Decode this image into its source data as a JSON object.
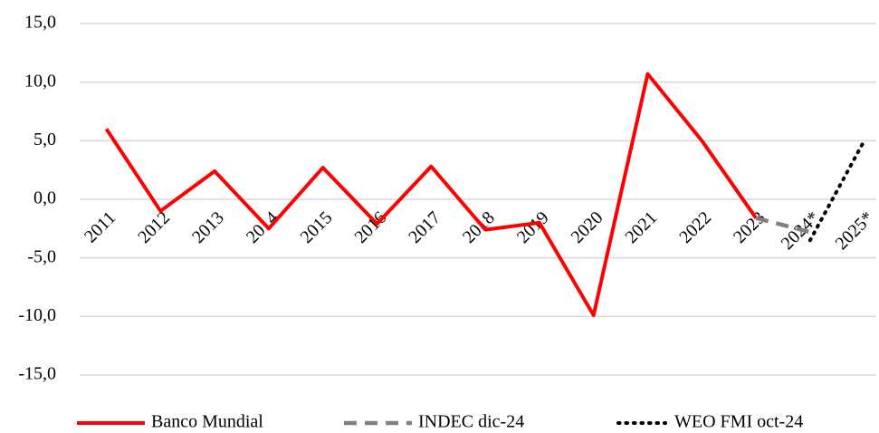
{
  "chart_data": {
    "type": "line",
    "categories": [
      "2011",
      "2012",
      "2013",
      "2014",
      "2015",
      "2016",
      "2017",
      "2018",
      "2019",
      "2020",
      "2021",
      "2022",
      "2023",
      "2024*",
      "2025*"
    ],
    "series": [
      {
        "name": "Banco Mundial",
        "color": "#ff0000",
        "style": "solid",
        "values": [
          6.0,
          -1.0,
          2.4,
          -2.5,
          2.7,
          -2.1,
          2.8,
          -2.6,
          -2.0,
          -9.9,
          10.7,
          5.0,
          -1.6,
          null,
          null
        ]
      },
      {
        "name": "INDEC dic-24",
        "color": "#808080",
        "style": "dashed",
        "values": [
          null,
          null,
          null,
          null,
          null,
          null,
          null,
          null,
          null,
          null,
          null,
          null,
          -1.6,
          -2.8,
          null
        ]
      },
      {
        "name": "WEO FMI oct-24",
        "color": "#000000",
        "style": "dotted",
        "values": [
          null,
          null,
          null,
          null,
          null,
          null,
          null,
          null,
          null,
          null,
          null,
          null,
          null,
          -3.5,
          5.0
        ]
      }
    ],
    "ylim": [
      -15,
      15
    ],
    "yticks": [
      {
        "value": -15,
        "label": "-15,0"
      },
      {
        "value": -10,
        "label": "-10,0"
      },
      {
        "value": -5,
        "label": "-5,0"
      },
      {
        "value": 0,
        "label": "0,0"
      },
      {
        "value": 5,
        "label": "5,0"
      },
      {
        "value": 10,
        "label": "10,0"
      },
      {
        "value": 15,
        "label": "15,0"
      }
    ],
    "grid": true,
    "legend": "bottom"
  }
}
